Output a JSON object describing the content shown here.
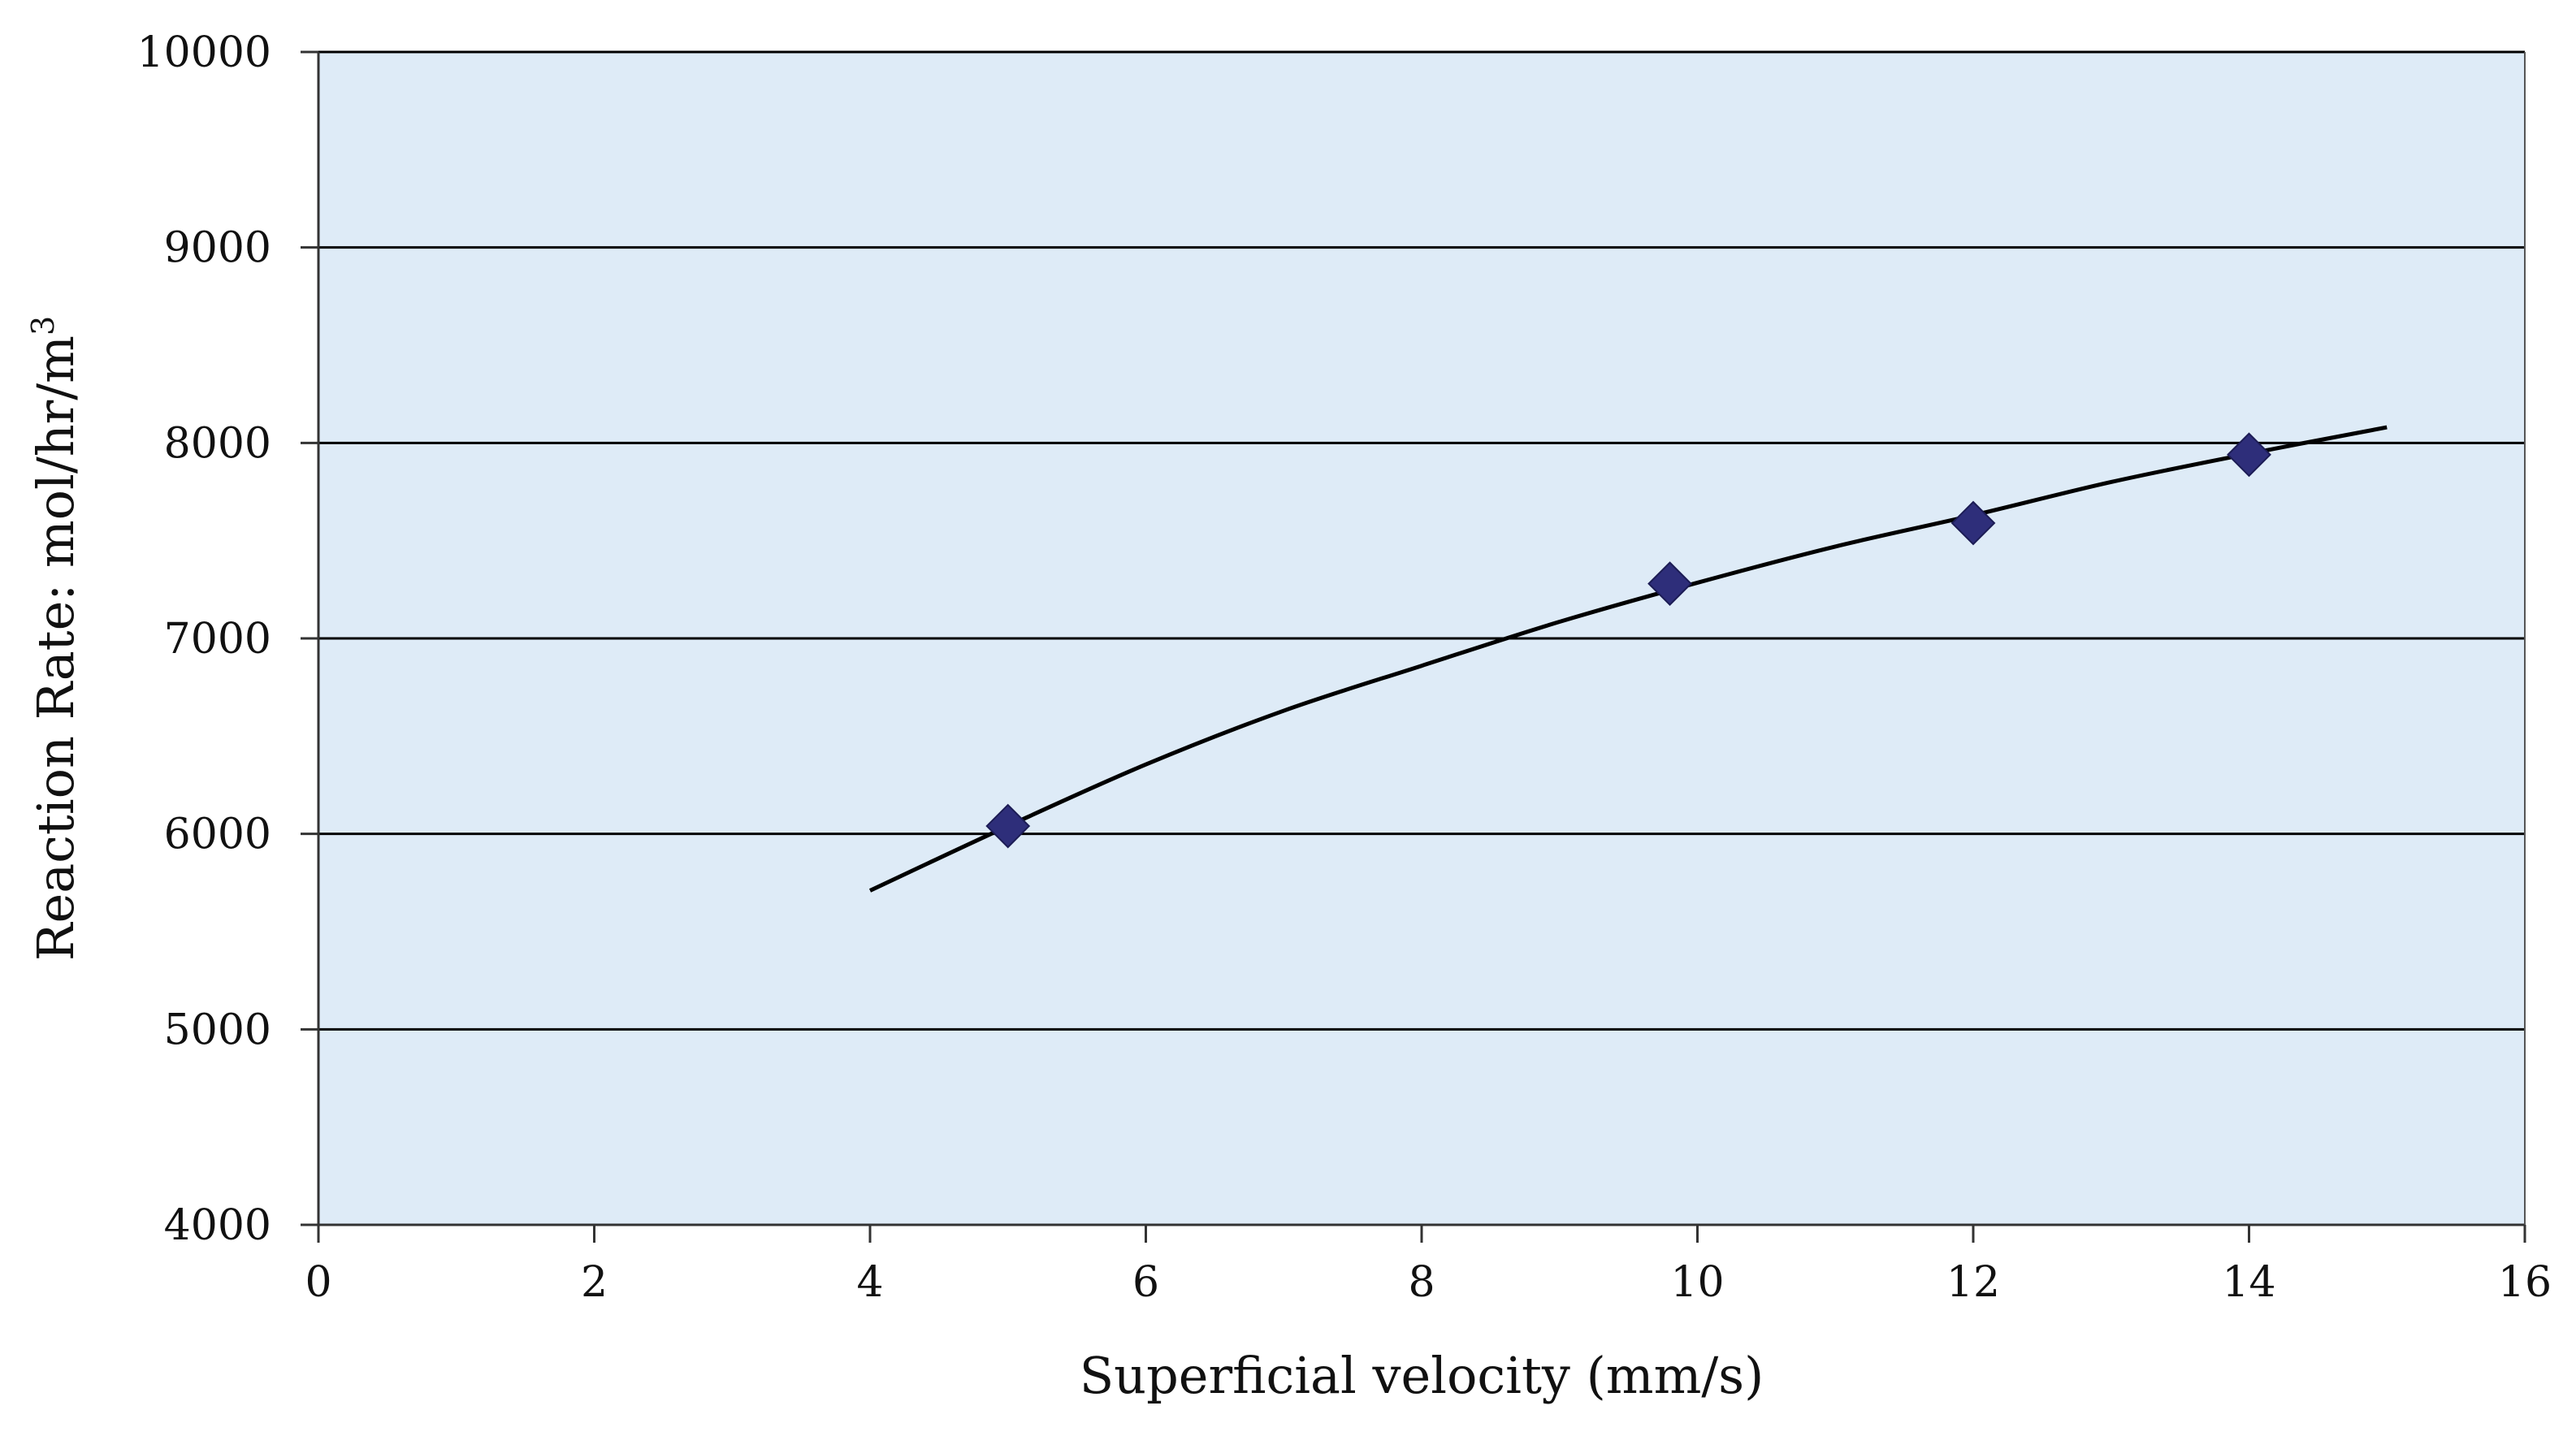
{
  "chart_data": {
    "type": "scatter",
    "xlabel": "Superficial velocity (mm/s)",
    "ylabel": "Reaction Rate:  mol/hr/m",
    "ylabel_superscript": "3",
    "xlim": [
      0,
      16
    ],
    "ylim": [
      4000,
      10000
    ],
    "xticks": [
      "0",
      "2",
      "4",
      "6",
      "8",
      "10",
      "12",
      "14",
      "16"
    ],
    "yticks": [
      "4000",
      "5000",
      "6000",
      "7000",
      "8000",
      "9000",
      "10000"
    ],
    "grid": "horizontal",
    "legend": "none",
    "series": [
      {
        "marker": "diamond",
        "color": "#2e2e7a",
        "points": [
          {
            "x": 5,
            "y": 6040
          },
          {
            "x": 9.8,
            "y": 7280
          },
          {
            "x": 12,
            "y": 7590
          },
          {
            "x": 14,
            "y": 7940
          }
        ]
      }
    ],
    "trendline": {
      "color": "#000000",
      "x_range": [
        4,
        15
      ],
      "points": [
        {
          "x": 4,
          "y": 5710
        },
        {
          "x": 5,
          "y": 6040
        },
        {
          "x": 6,
          "y": 6355
        },
        {
          "x": 7,
          "y": 6630
        },
        {
          "x": 8,
          "y": 6860
        },
        {
          "x": 9,
          "y": 7085
        },
        {
          "x": 10,
          "y": 7285
        },
        {
          "x": 11,
          "y": 7470
        },
        {
          "x": 12,
          "y": 7630
        },
        {
          "x": 13,
          "y": 7800
        },
        {
          "x": 14,
          "y": 7945
        },
        {
          "x": 15,
          "y": 8080
        }
      ]
    },
    "plot_background": "#deebf7",
    "gridline_color": "#000000"
  }
}
